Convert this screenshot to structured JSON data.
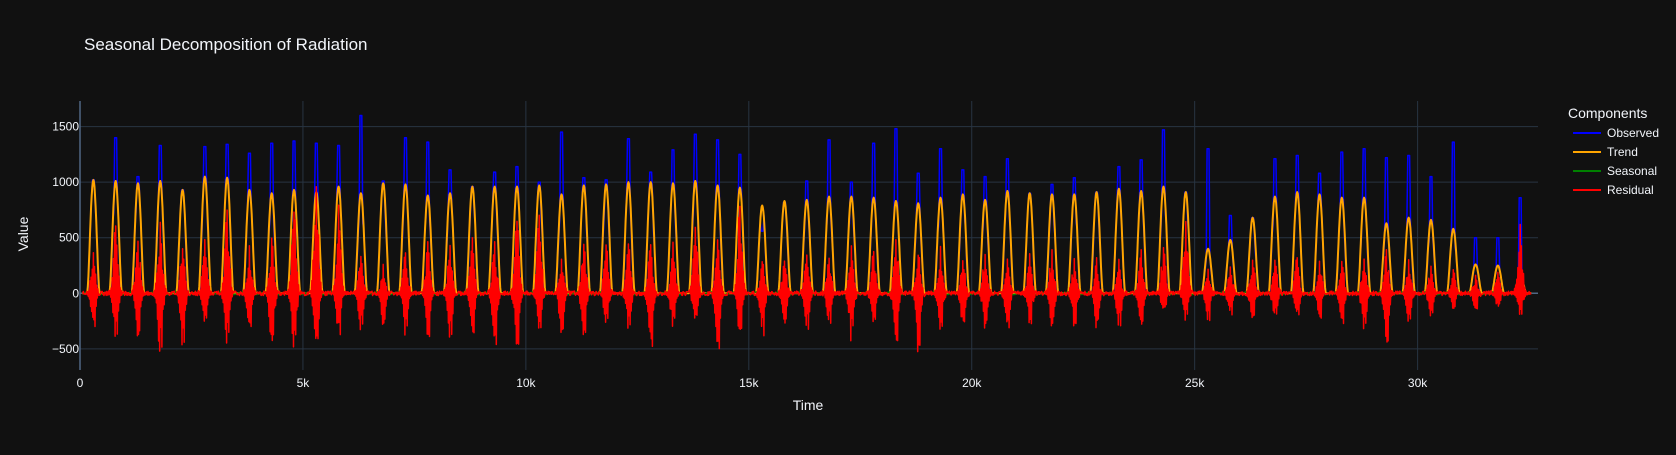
{
  "theme": {
    "background": "#111111",
    "grid": "#283442",
    "text": "#f2f5fa",
    "zeroline": "#506784"
  },
  "chart_data": {
    "type": "line",
    "title": "Seasonal Decomposition of Radiation",
    "xlabel": "Time",
    "ylabel": "Value",
    "xlim": [
      0,
      32700
    ],
    "ylim": [
      -690,
      1730
    ],
    "x_ticks": [
      0,
      5000,
      10000,
      15000,
      20000,
      25000,
      30000
    ],
    "x_tick_labels": [
      "0",
      "5k",
      "10k",
      "15k",
      "20k",
      "25k",
      "30k"
    ],
    "y_ticks": [
      -500,
      0,
      500,
      1000,
      1500
    ],
    "y_tick_labels": [
      "−500",
      "0",
      "500",
      "1000",
      "1500"
    ],
    "grid": true,
    "legend": {
      "title": "Components",
      "position": "top-right"
    },
    "series": [
      {
        "name": "Observed",
        "color": "#0000ff"
      },
      {
        "name": "Trend",
        "color": "#ffa500"
      },
      {
        "name": "Seasonal",
        "color": "#008000"
      },
      {
        "name": "Residual",
        "color": "#ff0000"
      }
    ],
    "cycles": {
      "x": [
        300,
        800,
        1300,
        1800,
        2300,
        2800,
        3300,
        3800,
        4300,
        4800,
        5300,
        5800,
        6300,
        6800,
        7300,
        7800,
        8300,
        8800,
        9300,
        9800,
        10300,
        10800,
        11300,
        11800,
        12300,
        12800,
        13300,
        13800,
        14300,
        14800,
        15300,
        15800,
        16300,
        16800,
        17300,
        17800,
        18300,
        18800,
        19300,
        19800,
        20300,
        20800,
        21300,
        21800,
        22300,
        22800,
        23300,
        23800,
        24300,
        24800,
        25300,
        25800,
        26300,
        26800,
        27300,
        27800,
        28300,
        28800,
        29300,
        29800,
        30300,
        30800,
        31300,
        31800,
        32300
      ],
      "trend_peak": [
        1020,
        1010,
        990,
        1010,
        930,
        1050,
        1040,
        930,
        900,
        930,
        910,
        960,
        900,
        990,
        980,
        880,
        900,
        960,
        960,
        960,
        970,
        890,
        970,
        980,
        1000,
        1000,
        990,
        1010,
        970,
        950,
        790,
        830,
        840,
        870,
        870,
        860,
        830,
        810,
        860,
        890,
        840,
        920,
        900,
        890,
        890,
        910,
        940,
        920,
        960,
        910,
        400,
        480,
        680,
        870,
        910,
        890,
        860,
        860,
        630,
        680,
        660,
        580,
        260,
        250,
        160
      ],
      "observed_peak": [
        1020,
        1400,
        1050,
        1330,
        930,
        1320,
        1340,
        1260,
        1350,
        1370,
        1350,
        1330,
        1600,
        1010,
        1400,
        1360,
        1110,
        960,
        1090,
        1140,
        1000,
        1450,
        1040,
        1020,
        1390,
        1090,
        1290,
        1430,
        1380,
        1250,
        560,
        820,
        1010,
        1380,
        1000,
        1350,
        1480,
        1080,
        1300,
        1110,
        1050,
        1210,
        900,
        980,
        1040,
        910,
        1140,
        1200,
        1470,
        910,
        1300,
        700,
        680,
        1210,
        1240,
        1080,
        1270,
        1300,
        1220,
        1240,
        1050,
        1360,
        500,
        500,
        860
      ],
      "residual_max": [
        350,
        600,
        450,
        650,
        400,
        500,
        750,
        420,
        500,
        750,
        960,
        800,
        350,
        250,
        380,
        450,
        420,
        500,
        450,
        650,
        700,
        300,
        450,
        440,
        450,
        450,
        460,
        600,
        490,
        800,
        300,
        300,
        350,
        300,
        420,
        360,
        500,
        360,
        420,
        290,
        350,
        300,
        340,
        390,
        300,
        300,
        300,
        400,
        400,
        630,
        200,
        230,
        290,
        310,
        330,
        300,
        300,
        300,
        400,
        300,
        250,
        200,
        150,
        200,
        620
      ],
      "residual_min": [
        -300,
        -420,
        -380,
        -560,
        -500,
        -300,
        -460,
        -360,
        -450,
        -520,
        -500,
        -380,
        -320,
        -300,
        -390,
        -400,
        -420,
        -400,
        -480,
        -500,
        -330,
        -380,
        -360,
        -300,
        -320,
        -500,
        -300,
        -300,
        -520,
        -400,
        -400,
        -300,
        -350,
        -300,
        -420,
        -300,
        -450,
        -530,
        -350,
        -300,
        -330,
        -340,
        -300,
        -300,
        -310,
        -310,
        -300,
        -300,
        -200,
        -250,
        -250,
        -200,
        -230,
        -220,
        -220,
        -230,
        -300,
        -350,
        -460,
        -300,
        -230,
        -150,
        -150,
        -120,
        -210
      ]
    }
  }
}
